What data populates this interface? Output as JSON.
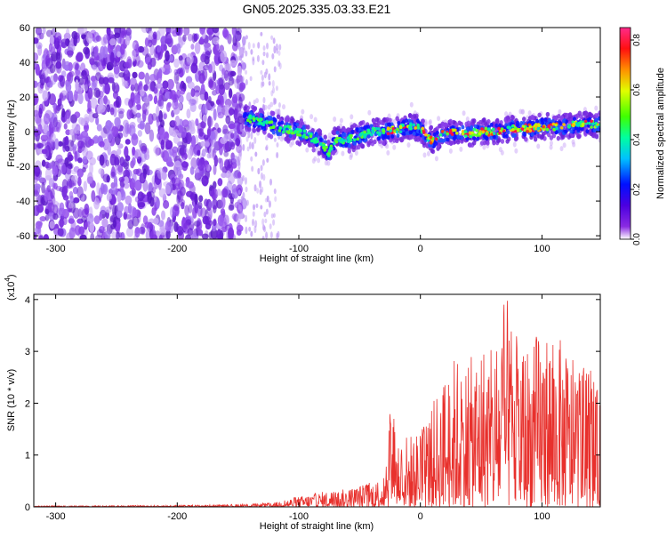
{
  "title": "GN05.2025.335.03.33.E21",
  "chart_data": [
    {
      "type": "heatmap",
      "title": "GN05.2025.335.03.33.E21",
      "xlabel": "Height of straight line (km)",
      "ylabel": "Frequency (Hz)",
      "xlim": [
        -318,
        148
      ],
      "ylim": [
        -62,
        60
      ],
      "xticks": [
        -300,
        -200,
        -100,
        0,
        100
      ],
      "yticks": [
        -60,
        -40,
        -20,
        0,
        20,
        40,
        60
      ],
      "grid": false,
      "noise_region_x": [
        -318,
        -145
      ],
      "ridge": {
        "x": [
          -145,
          -130,
          -115,
          -100,
          -90,
          -80,
          -75,
          -70,
          -60,
          -50,
          -40,
          -30,
          -20,
          -10,
          0,
          5,
          10,
          20,
          30,
          40,
          50,
          60,
          70,
          80,
          90,
          100,
          110,
          120,
          130,
          140,
          148
        ],
        "freq": [
          8,
          6,
          2,
          0,
          -3,
          -8,
          -13,
          -4,
          -5,
          -2,
          0,
          0,
          1,
          3,
          2,
          -3,
          -5,
          -1,
          0,
          -1,
          0,
          0,
          1,
          2,
          2,
          3,
          3,
          3,
          4,
          4,
          4
        ]
      },
      "colorbar": {
        "label": "Normalized spectral amplitude",
        "range": [
          0.0,
          0.85
        ],
        "ticks": [
          0.0,
          0.2,
          0.4,
          0.6,
          0.8
        ],
        "tick_labels": [
          "0.0",
          "0.2",
          "0.4",
          "0.6",
          "0.8"
        ]
      }
    },
    {
      "type": "line",
      "xlabel": "Height of straight line (km)",
      "ylabel": "SNR (10 * v/v)",
      "y_scale_label": "(x10",
      "y_scale_exp": "4",
      "xlim": [
        -318,
        148
      ],
      "ylim": [
        0,
        4.1
      ],
      "xticks": [
        -300,
        -200,
        -100,
        0,
        100
      ],
      "yticks": [
        0,
        1,
        2,
        3,
        4
      ],
      "series": [
        {
          "color": "#e8302c",
          "envelope_x": [
            -318,
            -200,
            -150,
            -120,
            -110,
            -100,
            -80,
            -60,
            -40,
            -30,
            -25,
            -20,
            -10,
            0,
            10,
            20,
            30,
            40,
            50,
            60,
            70,
            80,
            90,
            100,
            110,
            120,
            130,
            140,
            148
          ],
          "envelope_y": [
            0.02,
            0.03,
            0.05,
            0.08,
            0.15,
            0.2,
            0.3,
            0.35,
            0.5,
            0.6,
            2.4,
            1.5,
            1.4,
            1.5,
            2.0,
            2.6,
            3.0,
            2.8,
            3.3,
            3.0,
            4.1,
            3.3,
            3.2,
            3.5,
            3.4,
            3.1,
            2.6,
            2.8,
            2.0
          ]
        }
      ]
    }
  ]
}
